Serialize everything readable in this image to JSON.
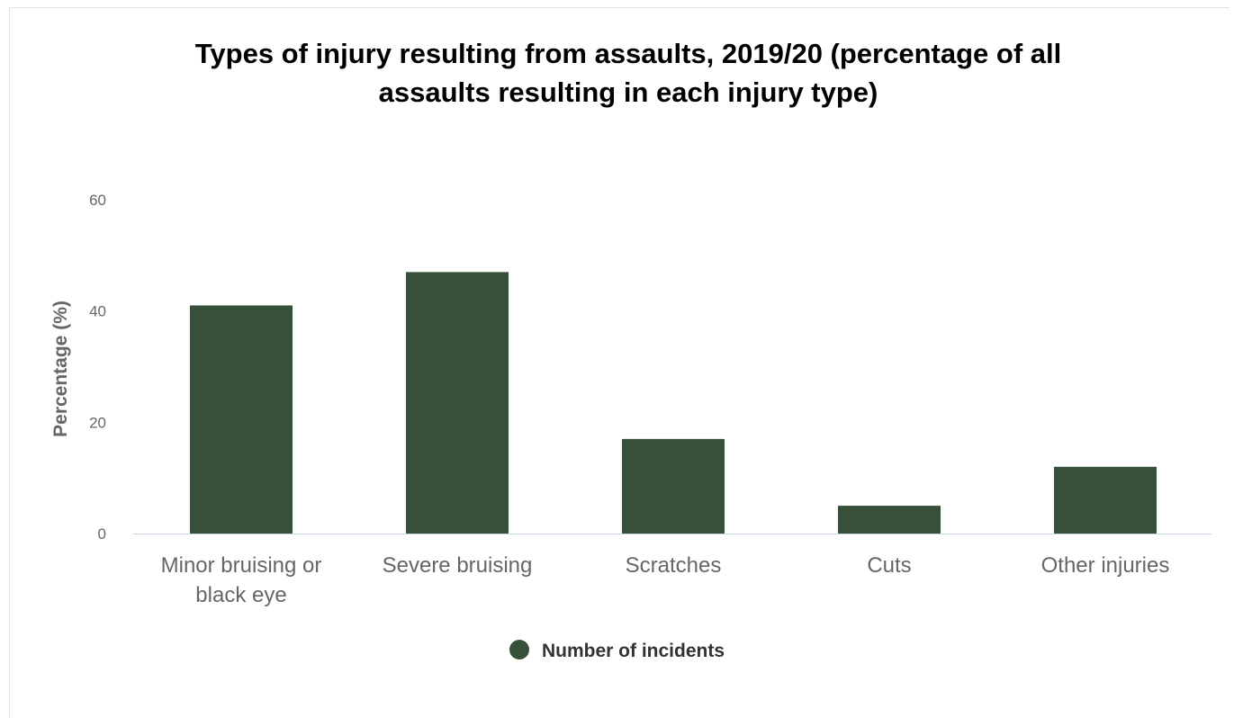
{
  "chart_data": {
    "type": "bar",
    "title_lines": [
      "Types of injury resulting from assaults, 2019/20 (percentage of all",
      "assaults resulting in each injury type)"
    ],
    "ylabel": "Percentage (%)",
    "xlabel": "",
    "ylim": [
      0,
      60
    ],
    "yticks": [
      0,
      20,
      40,
      60
    ],
    "categories": [
      [
        "Minor bruising or",
        "black eye"
      ],
      [
        "Severe bruising"
      ],
      [
        "Scratches"
      ],
      [
        "Cuts"
      ],
      [
        "Other injuries"
      ]
    ],
    "series": [
      {
        "name": "Number of incidents",
        "color": "#36503a",
        "values": [
          41,
          47,
          17,
          5,
          12
        ]
      }
    ],
    "legend_position": "bottom",
    "grid": false
  }
}
